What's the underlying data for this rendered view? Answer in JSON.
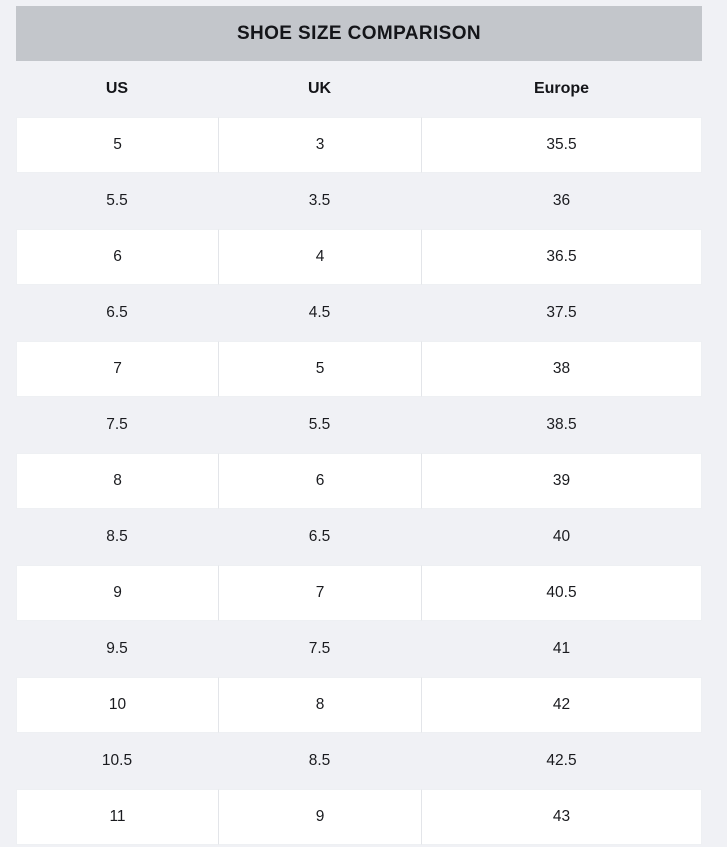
{
  "page": {
    "background_color": "#f0f1f5",
    "text_color": "#16171a"
  },
  "table": {
    "title": "SHOE SIZE COMPARISON",
    "title_bar_color": "#c3c6cb",
    "columns": [
      "US",
      "UK",
      "Europe"
    ],
    "rows": [
      [
        "5",
        "3",
        "35.5"
      ],
      [
        "5.5",
        "3.5",
        "36"
      ],
      [
        "6",
        "4",
        "36.5"
      ],
      [
        "6.5",
        "4.5",
        "37.5"
      ],
      [
        "7",
        "5",
        "38"
      ],
      [
        "7.5",
        "5.5",
        "38.5"
      ],
      [
        "8",
        "6",
        "39"
      ],
      [
        "8.5",
        "6.5",
        "40"
      ],
      [
        "9",
        "7",
        "40.5"
      ],
      [
        "9.5",
        "7.5",
        "41"
      ],
      [
        "10",
        "8",
        "42"
      ],
      [
        "10.5",
        "8.5",
        "42.5"
      ],
      [
        "11",
        "9",
        "43"
      ]
    ],
    "row_colors": {
      "odd_row_background": "#ffffff",
      "even_row_background": "#f0f1f5",
      "cell_border": "#e3e5e9"
    }
  },
  "chart_data": {
    "type": "table",
    "title": "SHOE SIZE COMPARISON",
    "columns": [
      "US",
      "UK",
      "Europe"
    ],
    "rows": [
      [
        5,
        3,
        35.5
      ],
      [
        5.5,
        3.5,
        36
      ],
      [
        6,
        4,
        36.5
      ],
      [
        6.5,
        4.5,
        37.5
      ],
      [
        7,
        5,
        38
      ],
      [
        7.5,
        5.5,
        38.5
      ],
      [
        8,
        6,
        39
      ],
      [
        8.5,
        6.5,
        40
      ],
      [
        9,
        7,
        40.5
      ],
      [
        9.5,
        7.5,
        41
      ],
      [
        10,
        8,
        42
      ],
      [
        10.5,
        8.5,
        42.5
      ],
      [
        11,
        9,
        43
      ]
    ]
  }
}
